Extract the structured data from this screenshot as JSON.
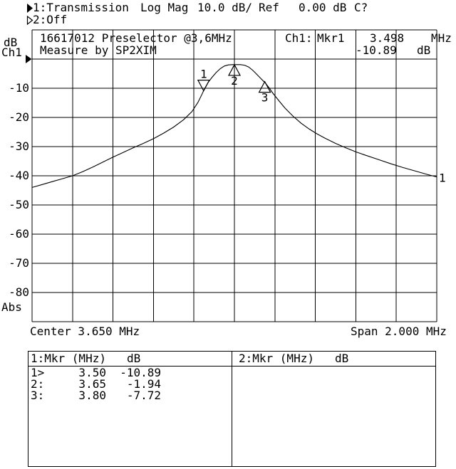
{
  "window": {
    "background": "#ffffff",
    "foreground": "#000000"
  },
  "status_bar": {
    "line1": {
      "marker_icon": "filled-right-triangle",
      "trace": "1:Transmission",
      "format": "Log Mag",
      "scale": "10.0 dB/",
      "ref_label": "Ref",
      "ref_value": "0.00 dB",
      "cal_status": "C?"
    },
    "line2": {
      "marker_icon": "hollow-right-triangle",
      "trace": "2:Off"
    }
  },
  "graticule": {
    "title_line1": "16617012 Preselector @3,6MHz",
    "title_line2": "Measure by SP2XIM",
    "readout": {
      "channel": "Ch1:",
      "marker": "Mkr1",
      "freq_value": "3.498",
      "freq_unit": "MHz",
      "level_value": "-10.89",
      "level_unit": "dB"
    },
    "y_axis": {
      "unit": "dB",
      "channel": "Ch1",
      "labels": [
        "-10",
        "-20",
        "-30",
        "-40",
        "-50",
        "-60",
        "-70",
        "-80"
      ],
      "bottom_label": "Abs"
    },
    "trace_end_label": "1"
  },
  "footer": {
    "center_label": "Center 3.650 MHz",
    "span_label": "Span 2.000 MHz"
  },
  "marker_table": {
    "left": {
      "title": "1:Mkr (MHz)",
      "unit": "dB",
      "rows": [
        {
          "id": "1>",
          "freq": "3.50",
          "level": "-10.89"
        },
        {
          "id": "2:",
          "freq": "3.65",
          "level": "-1.94"
        },
        {
          "id": "3:",
          "freq": "3.80",
          "level": "-7.72"
        }
      ]
    },
    "right": {
      "title": "2:Mkr (MHz)",
      "unit": "dB",
      "rows": []
    }
  },
  "chart_data": {
    "type": "line",
    "title": "16617012 Preselector @3,6MHz",
    "subtitle": "Measure by SP2XIM",
    "legend_position": "none",
    "grid": true,
    "x_axis": {
      "center_mhz": 3.65,
      "span_mhz": 2.0,
      "min_mhz": 2.65,
      "max_mhz": 4.65,
      "divisions": 10
    },
    "y_axis": {
      "unit": "dB",
      "ref_db": 0.0,
      "db_per_div": 10.0,
      "min_db": -90,
      "max_db": 10,
      "divisions": 10
    },
    "series": [
      {
        "name": "Ch1 Transmission (Log Mag)",
        "points_mhz_db": [
          [
            2.65,
            -44.0
          ],
          [
            2.7,
            -43.0
          ],
          [
            2.75,
            -42.0
          ],
          [
            2.8,
            -41.0
          ],
          [
            2.85,
            -40.0
          ],
          [
            2.9,
            -38.6
          ],
          [
            2.95,
            -37.0
          ],
          [
            3.0,
            -35.3
          ],
          [
            3.05,
            -33.6
          ],
          [
            3.1,
            -32.0
          ],
          [
            3.15,
            -30.4
          ],
          [
            3.2,
            -28.9
          ],
          [
            3.25,
            -27.3
          ],
          [
            3.3,
            -25.4
          ],
          [
            3.35,
            -23.3
          ],
          [
            3.4,
            -20.7
          ],
          [
            3.44,
            -18.0
          ],
          [
            3.47,
            -14.8
          ],
          [
            3.49,
            -12.0
          ],
          [
            3.5,
            -10.5
          ],
          [
            3.52,
            -8.0
          ],
          [
            3.54,
            -6.2
          ],
          [
            3.56,
            -4.6
          ],
          [
            3.58,
            -3.3
          ],
          [
            3.6,
            -2.4
          ],
          [
            3.62,
            -2.0
          ],
          [
            3.64,
            -1.9
          ],
          [
            3.66,
            -1.9
          ],
          [
            3.68,
            -1.9
          ],
          [
            3.7,
            -2.1
          ],
          [
            3.72,
            -2.7
          ],
          [
            3.74,
            -3.8
          ],
          [
            3.76,
            -5.2
          ],
          [
            3.78,
            -6.6
          ],
          [
            3.8,
            -8.0
          ],
          [
            3.82,
            -9.7
          ],
          [
            3.84,
            -11.7
          ],
          [
            3.87,
            -14.3
          ],
          [
            3.9,
            -16.8
          ],
          [
            3.94,
            -19.6
          ],
          [
            3.98,
            -22.0
          ],
          [
            4.02,
            -24.0
          ],
          [
            4.06,
            -25.7
          ],
          [
            4.1,
            -27.2
          ],
          [
            4.15,
            -28.9
          ],
          [
            4.2,
            -30.4
          ],
          [
            4.25,
            -31.8
          ],
          [
            4.3,
            -33.0
          ],
          [
            4.36,
            -34.4
          ],
          [
            4.42,
            -35.8
          ],
          [
            4.48,
            -37.1
          ],
          [
            4.54,
            -38.3
          ],
          [
            4.6,
            -39.5
          ],
          [
            4.65,
            -40.4
          ]
        ]
      }
    ],
    "markers": [
      {
        "n": "1",
        "mhz": 3.498,
        "db": -10.89,
        "shape": "down",
        "active": true
      },
      {
        "n": "2",
        "mhz": 3.65,
        "db": -1.94,
        "shape": "up",
        "active": false
      },
      {
        "n": "3",
        "mhz": 3.8,
        "db": -7.72,
        "shape": "up",
        "active": false
      }
    ]
  }
}
